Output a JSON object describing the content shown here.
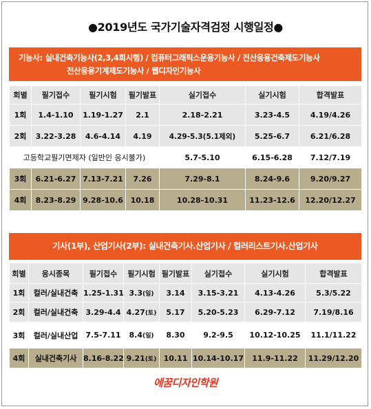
{
  "title": "●2019년도 국가기술자격검정 시행일정●",
  "section1": {
    "banner_line1": "기능사: 실내건축기능사(2,3,4회시행)  /  컴퓨터그래픽스운용기능사  /  전산응용건축제도기능사",
    "banner_line2": "전산응용기계제도기능사 / 웹디자인기능사",
    "headers": [
      "회별",
      "필기접수",
      "필기시험",
      "필기발표",
      "실기접수",
      "실기시험",
      "합격발표"
    ],
    "rows": [
      {
        "round": "1회",
        "cells": [
          "1.4-1.10",
          "1.19-1.27",
          "2.1",
          "2.18-2.21",
          "3.23-4.5",
          "4.19/4.26"
        ]
      },
      {
        "round": "2회",
        "cells": [
          "3.22-3.28",
          "4.6-4.14",
          "4.19",
          "4.29-5.3(5.1제외)",
          "5.25-6.7",
          "6.21/6.28"
        ]
      },
      {
        "special": "고등학교필기면제자 (일반인 응시불가)",
        "cells": [
          "5.7-5.10",
          "6.15-6.28",
          "7.12/7.19"
        ]
      },
      {
        "round": "3회",
        "cells": [
          "6.21-6.27",
          "7.13-7.21",
          "7.26",
          "7.29-8.1",
          "8.24-9.6",
          "9.20/9.27"
        ]
      },
      {
        "round": "4회",
        "cells": [
          "8.23-8.29",
          "9.28-10.6",
          "10.18",
          "10.28-10.31",
          "11.23-12.6",
          "12.20/12.27"
        ]
      }
    ]
  },
  "section2": {
    "banner": "기사(1부), 산업기사(2부):    실내건축기사.산업기사 / 컬러리스트기사.산업기사",
    "headers": [
      "회별",
      "응시종목",
      "필기접수",
      "필기시험",
      "필기발표",
      "실기접수",
      "실기시험",
      "합격발표"
    ],
    "rows": [
      {
        "round": "1회",
        "subject": "컬러/실내건축",
        "write_apply": "1.25-1.31",
        "write_exam": "3.3",
        "day": "(일)",
        "write_result": "3.14",
        "prac_apply": "3.15-3.21",
        "prac_exam": "4.13-4.26",
        "result": "5.3/5.22"
      },
      {
        "round": "2회",
        "subject": "컬러/실내건축",
        "write_apply": "3.29-4.4",
        "write_exam": "4.27",
        "day": "(토)",
        "write_result": "5.17",
        "prac_apply": "5.20-5.23",
        "prac_exam": "6.29-7.12",
        "result": "7.19/8.16"
      },
      {
        "round": "3회",
        "subject": "컬러/실내산업",
        "write_apply": "7.5-7.11",
        "write_exam": "8.4",
        "day": "(일)",
        "write_result": "8.30",
        "prac_apply": "9.2-9.5",
        "prac_exam": "10.12-10.25",
        "result": "11.1/11.22"
      },
      {
        "round": "4회",
        "subject": "실내건축기사",
        "write_apply": "8.16-8.22",
        "write_exam": "9.21",
        "day": "(토)",
        "write_result": "10.11",
        "prac_apply": "10.14-10.17",
        "prac_exam": "11.9-11.22",
        "result": "11.29/12.20"
      }
    ]
  },
  "logo": "에꿈디자인학원",
  "colors": {
    "banner": "#ec5a24",
    "row_gray": "#e6e6e6",
    "row_tan": "#b8ad8d",
    "logo": "#e8331d"
  }
}
